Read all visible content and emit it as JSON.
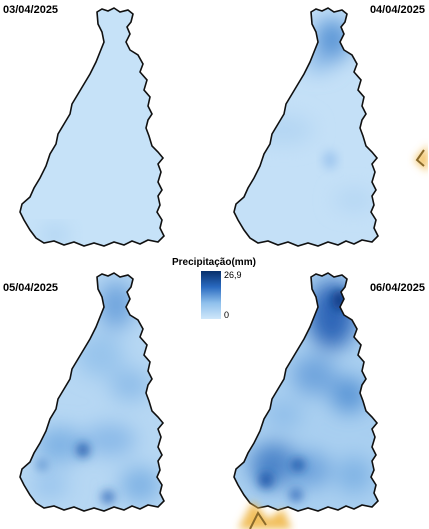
{
  "panels": [
    {
      "date": "03/04/2025"
    },
    {
      "date": "04/04/2025"
    },
    {
      "date": "05/04/2025"
    },
    {
      "date": "06/04/2025"
    }
  ],
  "legend": {
    "title": "Precipitação(mm)",
    "max_label": "26,9",
    "min_label": "0",
    "color_high": "#08306b",
    "color_low": "#cfe7fa"
  }
}
